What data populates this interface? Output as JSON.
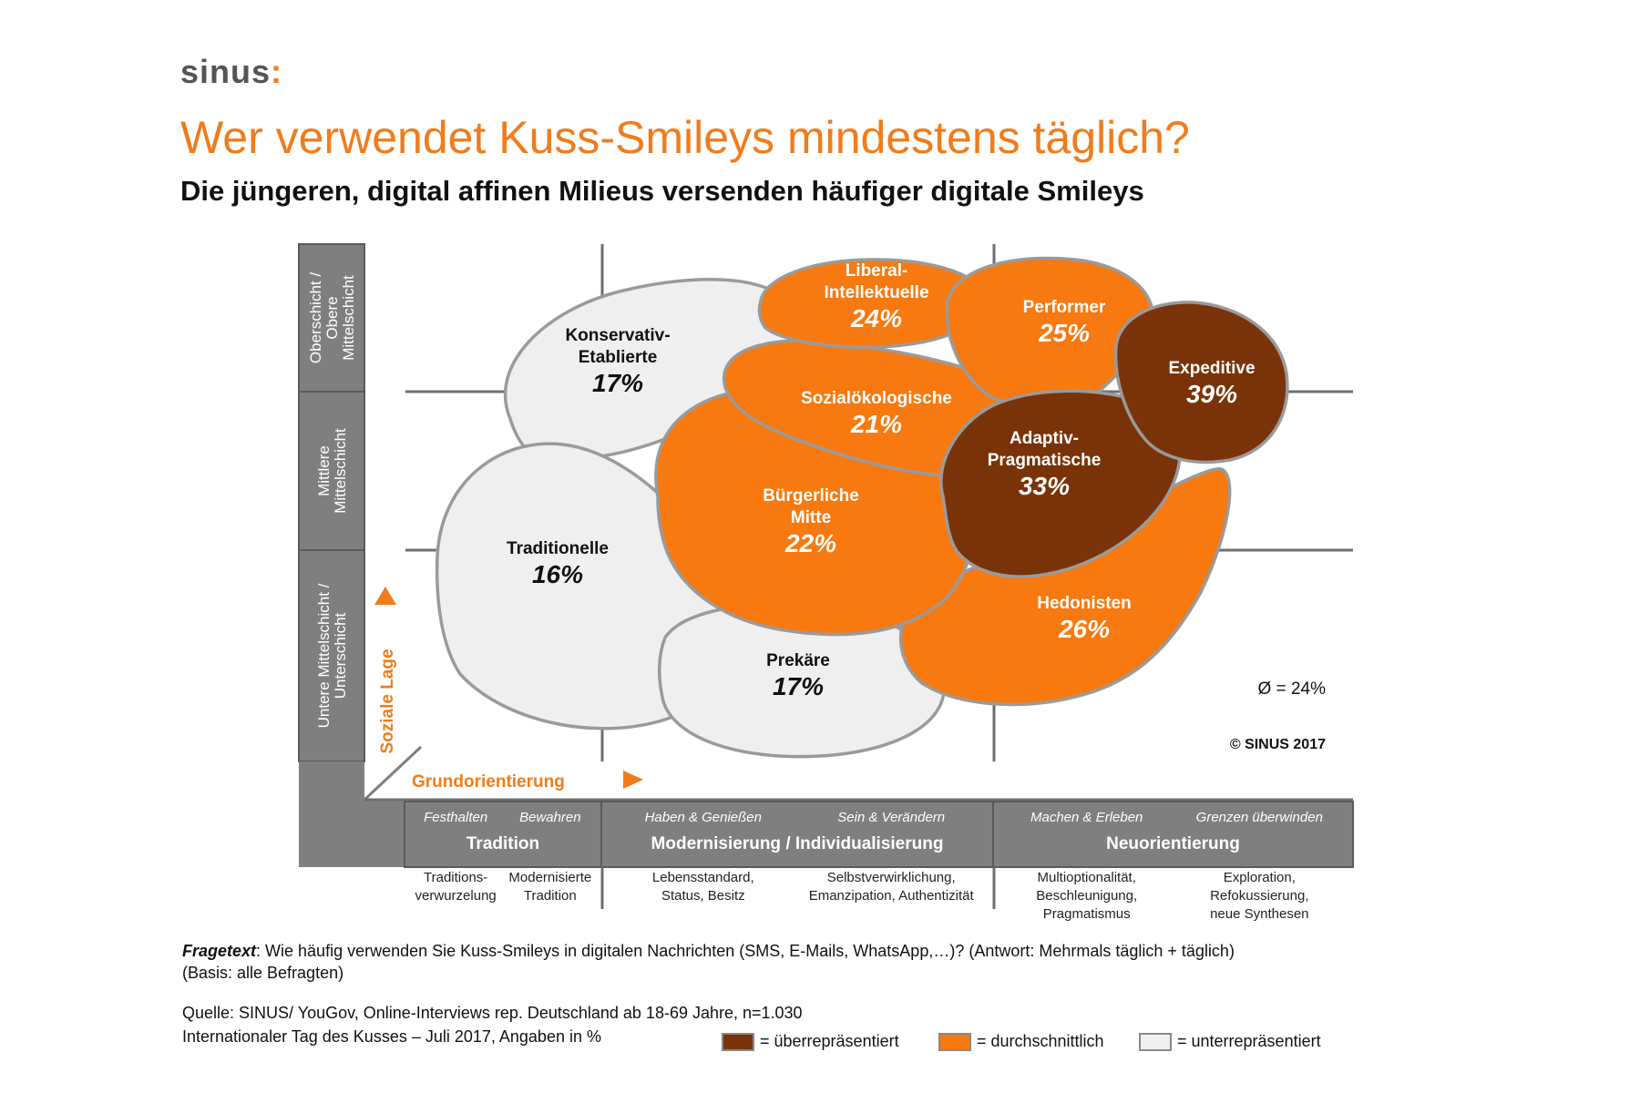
{
  "header": {
    "logo_text": "sinus",
    "title": "Wer verwendet Kuss-Smileys mindestens täglich?",
    "subtitle": "Die jüngeren, digital affinen Milieus versenden häufiger digitale Smileys"
  },
  "chart_data": {
    "type": "milieu-map",
    "unit": "%",
    "average_label": "Ø = 24%",
    "copyright": "© SINUS 2017",
    "milieus": [
      {
        "name_lines": [
          "Konservativ-",
          "Etablierte"
        ],
        "value": 17,
        "label": "17%",
        "category": "under"
      },
      {
        "name_lines": [
          "Liberal-",
          "Intellektuelle"
        ],
        "value": 24,
        "label": "24%",
        "category": "average"
      },
      {
        "name_lines": [
          "Performer"
        ],
        "value": 25,
        "label": "25%",
        "category": "average"
      },
      {
        "name_lines": [
          "Expeditive"
        ],
        "value": 39,
        "label": "39%",
        "category": "over"
      },
      {
        "name_lines": [
          "Sozialökologische"
        ],
        "value": 21,
        "label": "21%",
        "category": "average"
      },
      {
        "name_lines": [
          "Adaptiv-",
          "Pragmatische"
        ],
        "value": 33,
        "label": "33%",
        "category": "over"
      },
      {
        "name_lines": [
          "Bürgerliche",
          "Mitte"
        ],
        "value": 22,
        "label": "22%",
        "category": "average"
      },
      {
        "name_lines": [
          "Traditionelle"
        ],
        "value": 16,
        "label": "16%",
        "category": "under"
      },
      {
        "name_lines": [
          "Prekäre"
        ],
        "value": 17,
        "label": "17%",
        "category": "under"
      },
      {
        "name_lines": [
          "Hedonisten"
        ],
        "value": 26,
        "label": "26%",
        "category": "average"
      }
    ],
    "y_axis": {
      "title": "Soziale Lage",
      "bands": [
        {
          "lines": [
            "Oberschicht /",
            "Obere",
            "Mittelschicht"
          ]
        },
        {
          "lines": [
            "Mittlere",
            "Mittelschicht"
          ]
        },
        {
          "lines": [
            "Untere Mittelschicht /",
            "Unterschicht"
          ]
        }
      ]
    },
    "x_axis": {
      "title": "Grundorientierung",
      "groups": [
        {
          "title": "Tradition",
          "sub": [
            "Festhalten",
            "Bewahren"
          ],
          "desc": [
            [
              "Traditions-",
              "verwurzelung"
            ],
            [
              "Modernisierte",
              "Tradition"
            ]
          ]
        },
        {
          "title": "Modernisierung / Individualisierung",
          "sub": [
            "Haben & Genießen",
            "Sein & Verändern"
          ],
          "desc": [
            [
              "Lebensstandard,",
              "Status, Besitz"
            ],
            [
              "Selbstverwirklichung,",
              "Emanzipation, Authentizität"
            ]
          ]
        },
        {
          "title": "Neuorientierung",
          "sub": [
            "Machen & Erleben",
            "Grenzen überwinden"
          ],
          "desc": [
            [
              "Multioptionalität,",
              "Beschleunigung,",
              "Pragmatismus"
            ],
            [
              "Exploration,",
              "Refokussierung,",
              "neue Synthesen"
            ]
          ]
        }
      ]
    },
    "colors": {
      "over": "#7A3308",
      "average": "#F7790F",
      "under": "#EFEFEF",
      "outline": "#9A9A9A",
      "axis": "#7F7F7F",
      "accent": "#F07C1C"
    }
  },
  "footer": {
    "question_label": "Fragetext",
    "question_text": ": Wie häufig verwenden Sie Kuss-Smileys in digitalen Nachrichten (SMS, E-Mails, WhatsApp,…)?  (Antwort: Mehrmals täglich + täglich)",
    "basis": "(Basis: alle Befragten)",
    "source": "Quelle: SINUS/ YouGov, Online-Interviews rep. Deutschland ab 18-69 Jahre, n=1.030",
    "note": "Internationaler Tag des Kusses – Juli 2017, Angaben in %"
  },
  "legend": [
    {
      "label": "= überrepräsentiert",
      "color": "#7A3308"
    },
    {
      "label": "= durchschnittlich",
      "color": "#F7790F"
    },
    {
      "label": "= unterrepräsentiert",
      "color": "#EFEFEF"
    }
  ]
}
